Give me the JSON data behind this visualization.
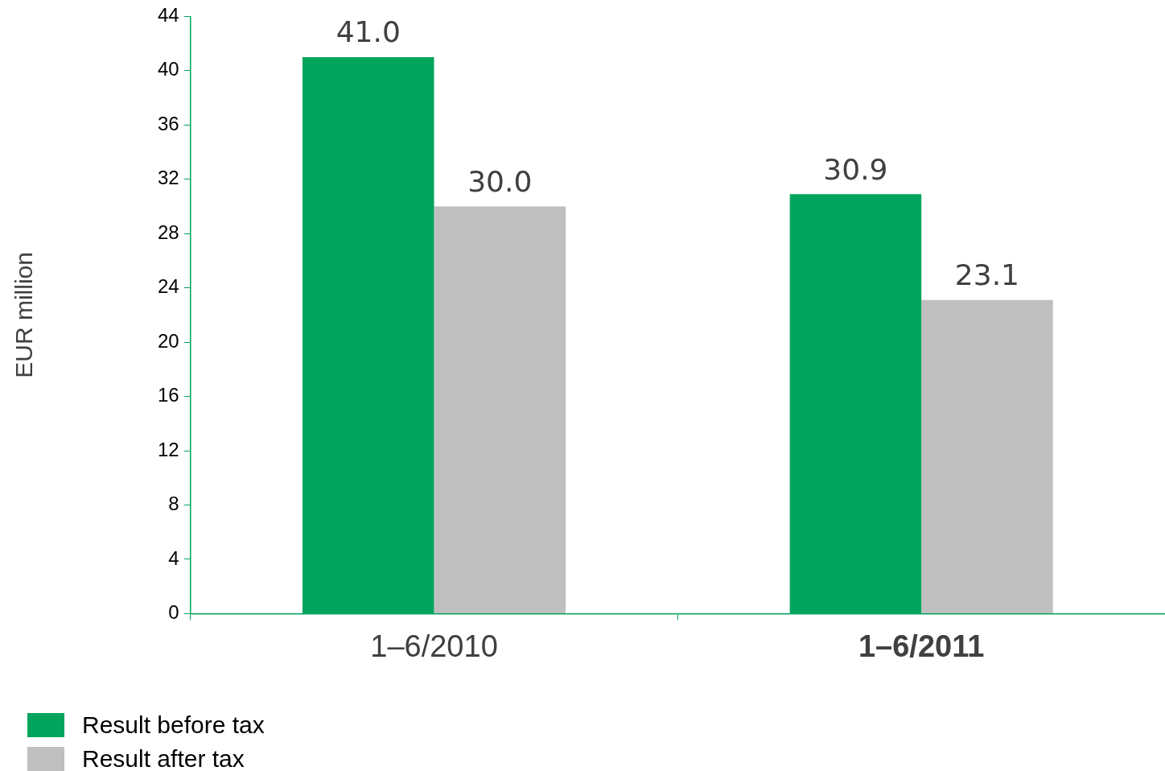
{
  "chart_data": {
    "type": "bar",
    "ylabel": "EUR million",
    "categories": [
      "1–6/2010",
      "1–6/2011"
    ],
    "series": [
      {
        "name": "Result before tax",
        "color": "#00a45c",
        "values": [
          41.0,
          30.9
        ],
        "value_labels": [
          "41.0",
          "30.9"
        ]
      },
      {
        "name": "Result after tax",
        "color": "#bfbfbf",
        "values": [
          30.0,
          23.1
        ],
        "value_labels": [
          "30.0",
          "23.1"
        ]
      }
    ],
    "ylim": [
      0,
      44
    ],
    "yticks": [
      0,
      4,
      8,
      12,
      16,
      20,
      24,
      28,
      32,
      36,
      40,
      44
    ],
    "grid": false,
    "legend": "bottom left"
  }
}
